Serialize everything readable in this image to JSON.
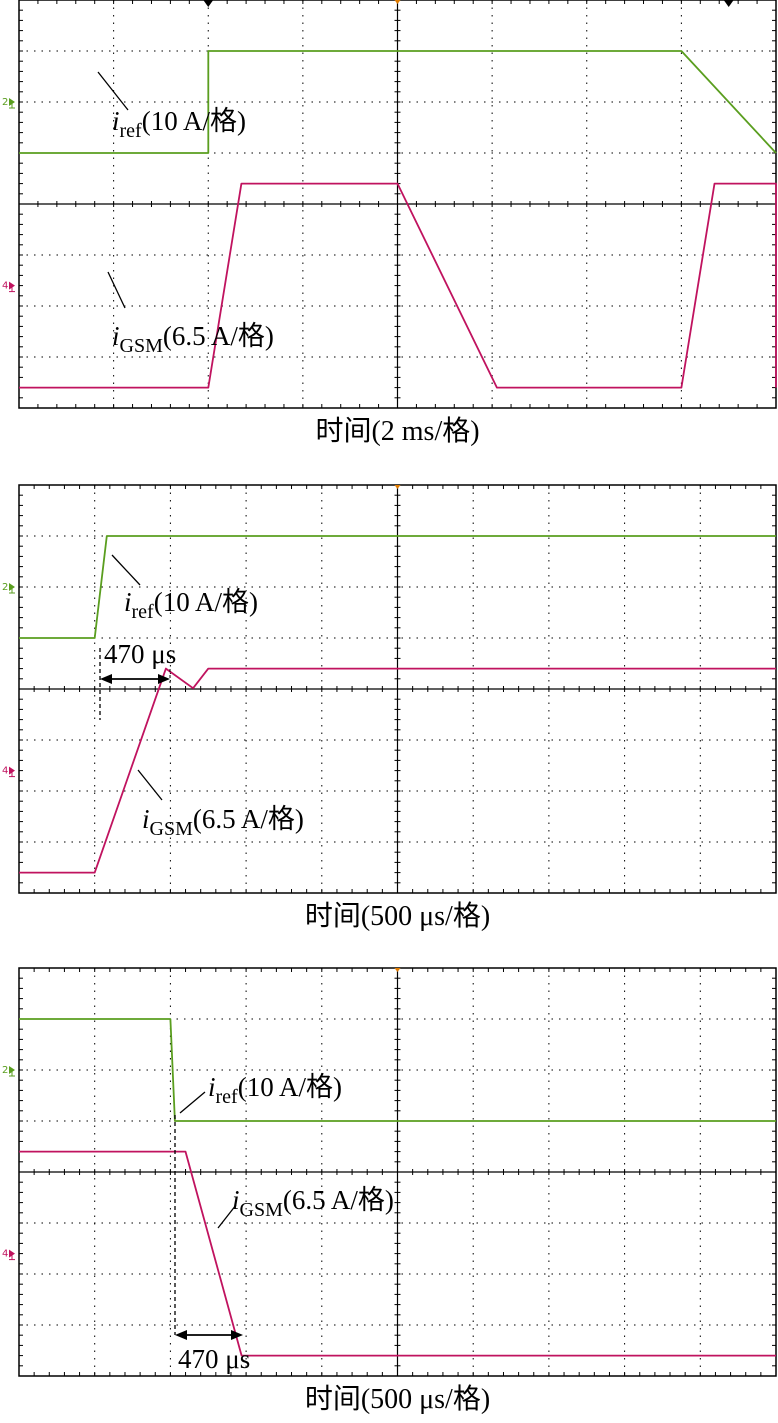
{
  "colors": {
    "ref": "#5a9e1f",
    "gsm": "#c0135f",
    "grid": "#000000"
  },
  "chart_data": [
    {
      "type": "line",
      "xlabel": "时间(2 ms/格)",
      "x_unit": "ms",
      "x_per_div": 2,
      "divisions": 8,
      "ref_label": {
        "var": "i",
        "sub": "ref",
        "text": "(10 A/格)"
      },
      "gsm_label": {
        "var": "i",
        "sub": "GSM",
        "text": "(6.5 A/格)"
      },
      "series": [
        {
          "name": "i_ref (10 A/格)",
          "channel": 2,
          "unit": "A",
          "per_div": 10,
          "x": [
            0,
            4.0,
            4.0,
            8.0,
            14.0,
            14.0,
            18.0,
            20.6
          ],
          "y": [
            -10,
            -10,
            10,
            10,
            10,
            10,
            -10,
            -10
          ]
        },
        {
          "name": "i_GSM (6.5 A/格)",
          "channel": 4,
          "unit": "A",
          "per_div": 6.5,
          "x": [
            0,
            4.0,
            4.7,
            5.0,
            8.0,
            10.1,
            14.0,
            14.7,
            15.0,
            18.0,
            20.6
          ],
          "y": [
            -13,
            -13,
            13,
            13,
            13,
            -13,
            -13,
            13,
            13,
            13,
            -13
          ]
        }
      ]
    },
    {
      "type": "line",
      "xlabel": "时间(500 μs/格)",
      "x_unit": "μs",
      "x_per_div": 500,
      "divisions": 10,
      "ref_label": {
        "var": "i",
        "sub": "ref",
        "text": "(10 A/格)"
      },
      "gsm_label": {
        "var": "i",
        "sub": "GSM",
        "text": "(6.5 A/格)"
      },
      "annotation": "470 μs",
      "series": [
        {
          "name": "i_ref (10 A/格)",
          "channel": 2,
          "unit": "A",
          "per_div": 10,
          "x": [
            0,
            500,
            580,
            5000
          ],
          "y": [
            -10,
            -10,
            10,
            10
          ]
        },
        {
          "name": "i_GSM (6.5 A/格)",
          "channel": 4,
          "unit": "A",
          "per_div": 6.5,
          "x": [
            0,
            500,
            970,
            1150,
            1250,
            5000
          ],
          "y": [
            -13,
            -13,
            13,
            10.5,
            13,
            13
          ]
        }
      ]
    },
    {
      "type": "line",
      "xlabel": "时间(500 μs/格)",
      "x_unit": "μs",
      "x_per_div": 500,
      "divisions": 10,
      "ref_label": {
        "var": "i",
        "sub": "ref",
        "text": "(10 A/格)"
      },
      "gsm_label": {
        "var": "i",
        "sub": "GSM",
        "text": "(6.5 A/格)"
      },
      "annotation": "470 μs",
      "series": [
        {
          "name": "i_ref (10 A/格)",
          "channel": 2,
          "unit": "A",
          "per_div": 10,
          "x": [
            0,
            1000,
            1030,
            5000
          ],
          "y": [
            10,
            10,
            -10,
            -10
          ]
        },
        {
          "name": "i_GSM (6.5 A/格)",
          "channel": 4,
          "unit": "A",
          "per_div": 6.5,
          "x": [
            0,
            1100,
            1470,
            5000
          ],
          "y": [
            13,
            13,
            -13,
            -13
          ]
        }
      ]
    }
  ]
}
